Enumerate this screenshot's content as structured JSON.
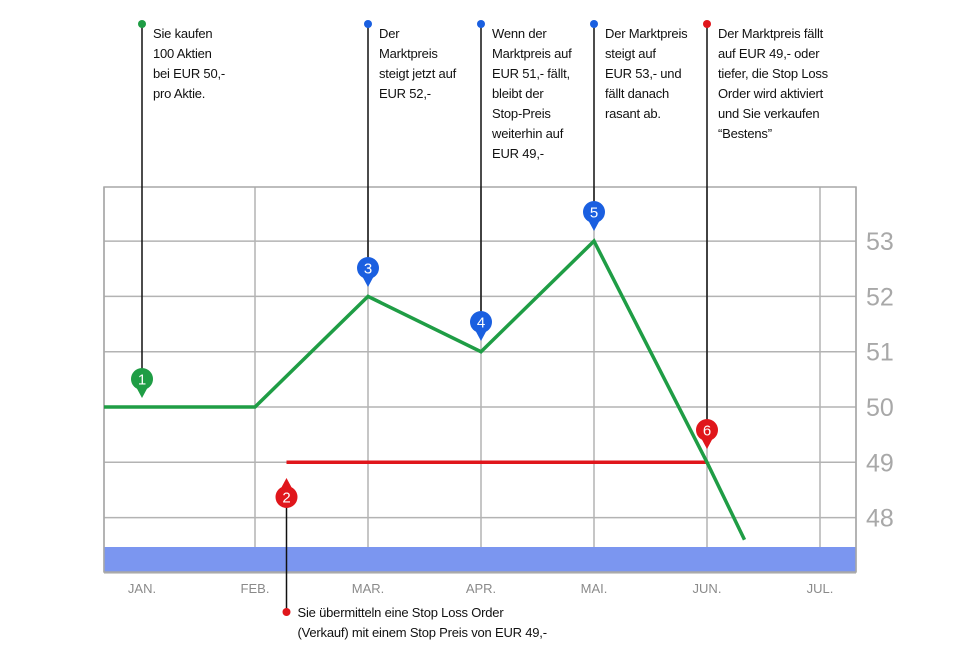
{
  "chart_data": {
    "type": "line",
    "title": "",
    "xlabel": "",
    "ylabel": "",
    "categories": [
      "JAN.",
      "FEB.",
      "MAR.",
      "APR.",
      "MAI.",
      "JUN.",
      "JUL."
    ],
    "yticks": [
      "48",
      "49",
      "50",
      "51",
      "52",
      "53"
    ],
    "ylim": [
      47.5,
      53.8
    ],
    "grid": true,
    "series": [
      {
        "role": "market-price",
        "color": "#1f9d45",
        "points": [
          {
            "x": "JAN.",
            "y": 50
          },
          {
            "x": "FEB.",
            "y": 50
          },
          {
            "x": "MAR.",
            "y": 52
          },
          {
            "x": "APR.",
            "y": 51
          },
          {
            "x": "MAI.",
            "y": 53
          },
          {
            "x": "JUN.",
            "y": 49
          },
          {
            "x": "JUN.-JUL.",
            "y": 47.6
          }
        ]
      },
      {
        "role": "stop-price",
        "color": "#e0161b",
        "y": 49,
        "from": "FEB.-MAR.",
        "to": "JUN."
      }
    ],
    "band_color": "#7b96f0",
    "markers": [
      {
        "number": "1",
        "color": "#1f9d45",
        "x": "JAN.",
        "y": 50,
        "text": "Sie kaufen\n100 Aktien\nbei EUR 50,-\npro Aktie."
      },
      {
        "number": "2",
        "color": "#e0161b",
        "x": "FEB.-MAR.",
        "y": 49,
        "text": "Sie übermitteln eine Stop Loss Order\n(Verkauf) mit einem Stop Preis von EUR 49,-"
      },
      {
        "number": "3",
        "color": "#1a5fe0",
        "x": "MAR.",
        "y": 52,
        "text": "Der\nMarktpreis\nsteigt jetzt auf\nEUR 52,-"
      },
      {
        "number": "4",
        "color": "#1a5fe0",
        "x": "APR.",
        "y": 51,
        "text": "Wenn der\nMarktpreis auf\nEUR 51,- fällt,\nbleibt der\nStop-Preis\nweiterhin auf\nEUR 49,-"
      },
      {
        "number": "5",
        "color": "#1a5fe0",
        "x": "MAI.",
        "y": 53,
        "text": "Der Marktpreis\nsteigt auf\nEUR 53,- und\nfällt danach\nrasant ab."
      },
      {
        "number": "6",
        "color": "#e0161b",
        "x": "JUN.",
        "y": 49,
        "text": "Der Marktpreis fällt\nauf EUR 49,- oder\ntiefer, die Stop Loss\nOrder wird aktiviert\nund Sie verkaufen\n“Bestens”"
      }
    ]
  }
}
